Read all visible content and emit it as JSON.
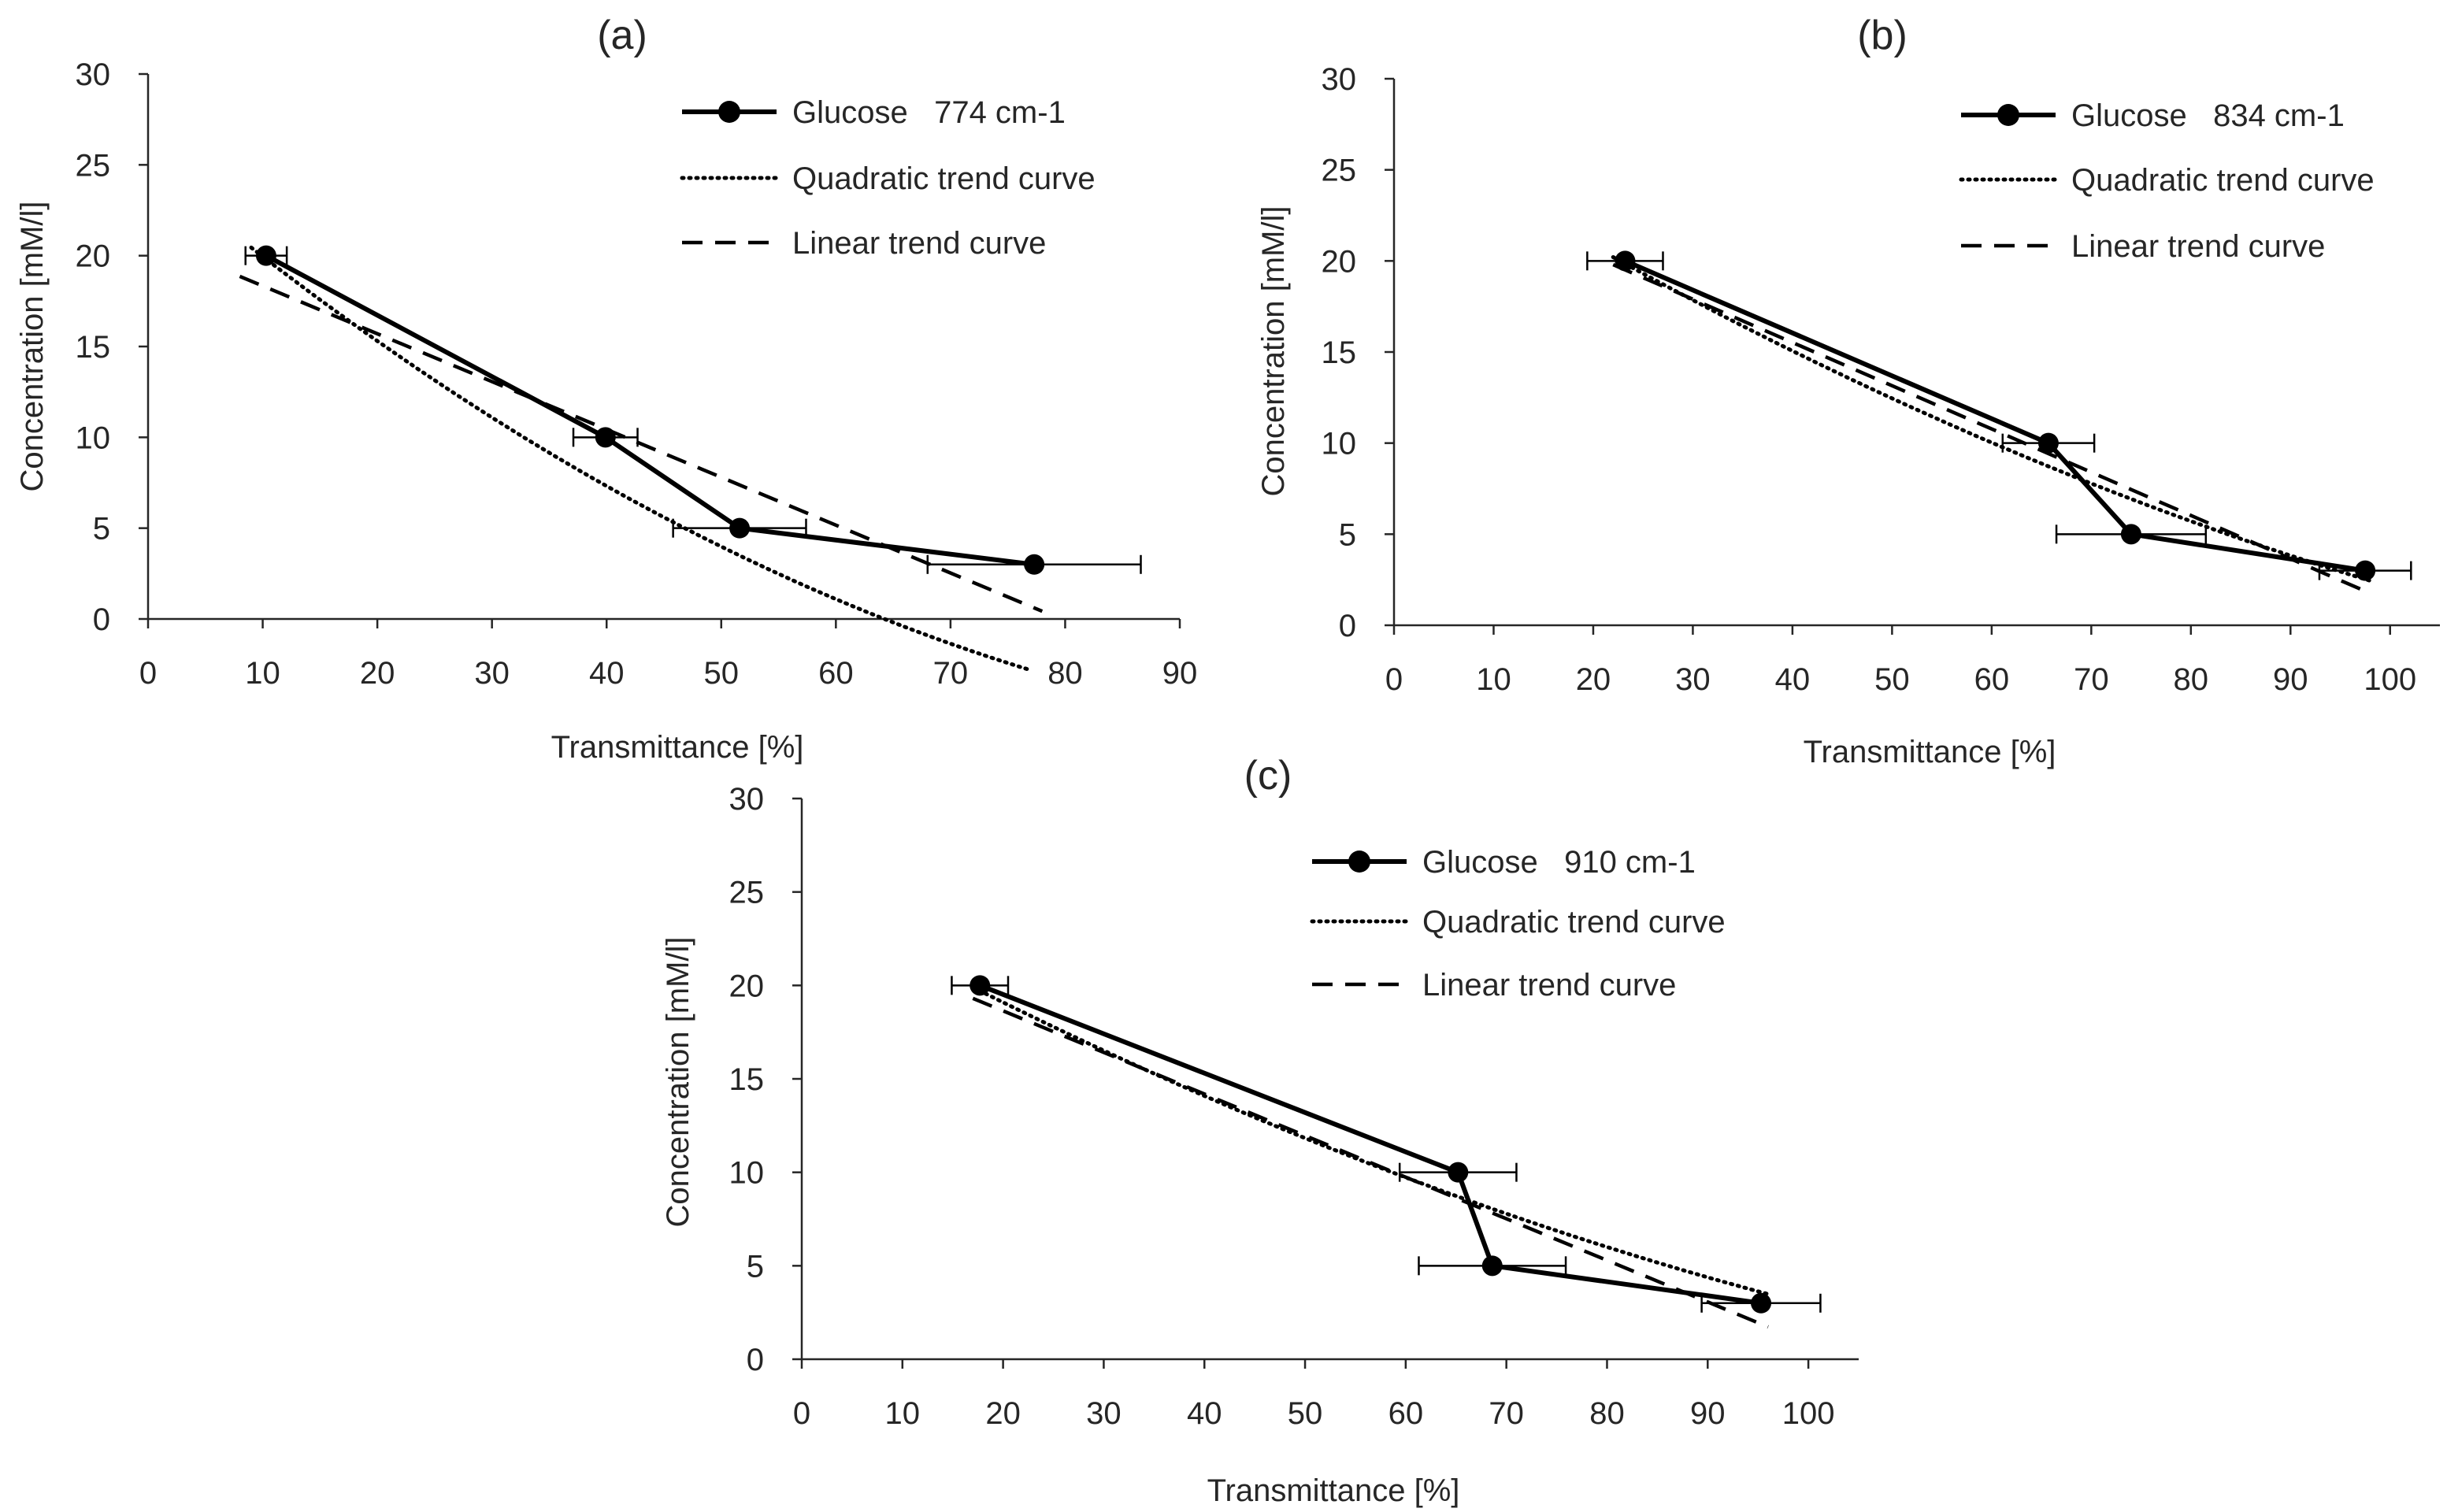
{
  "chart_data": [
    {
      "type": "line",
      "panel_label": "(a)",
      "xlabel": "Transmittance [%]",
      "ylabel": "Concentration [mM/l]",
      "xlim": [
        0,
        90
      ],
      "ylim": [
        0,
        30
      ],
      "xticks": [
        "0",
        "10",
        "20",
        "30",
        "40",
        "50",
        "60",
        "70",
        "80",
        "90"
      ],
      "yticks": [
        "0",
        "5",
        "10",
        "15",
        "20",
        "25",
        "30"
      ],
      "legend_position": "top-right",
      "series": [
        {
          "name": "Glucose   774 cm-1",
          "kind": "data",
          "x": [
            10.3,
            39.9,
            51.6,
            77.3
          ],
          "y": [
            20,
            10,
            5,
            3
          ],
          "x_error": [
            1.8,
            2.8,
            5.8,
            9.3
          ]
        },
        {
          "name": "Quadratic trend curve",
          "kind": "quadratic",
          "coefficients": [
            0.0022,
            -0.5313,
            25.05
          ],
          "x_range": [
            9,
            77
          ]
        },
        {
          "name": "Linear trend curve",
          "kind": "linear",
          "coefficients": [
            -0.2634,
            20.97
          ],
          "x_range": [
            8,
            78
          ]
        }
      ]
    },
    {
      "type": "line",
      "panel_label": "(b)",
      "xlabel": "Transmittance [%]",
      "ylabel": "Concentration [mM/l]",
      "xlim": [
        0,
        105
      ],
      "ylim": [
        0,
        30
      ],
      "xticks": [
        "0",
        "10",
        "20",
        "30",
        "40",
        "50",
        "60",
        "70",
        "80",
        "90",
        "100"
      ],
      "yticks": [
        "0",
        "5",
        "10",
        "15",
        "20",
        "25",
        "30"
      ],
      "legend_position": "top-right",
      "series": [
        {
          "name": "Glucose   834 cm-1",
          "kind": "data",
          "x": [
            23.2,
            65.7,
            74.0,
            97.5
          ],
          "y": [
            20,
            10,
            5,
            3
          ],
          "x_error": [
            3.8,
            4.6,
            7.5,
            4.6
          ]
        },
        {
          "name": "Quadratic trend curve",
          "kind": "quadratic",
          "coefficients": [
            0.0009,
            -0.3417,
            27.29
          ],
          "x_range": [
            22,
            98
          ]
        },
        {
          "name": "Linear trend curve",
          "kind": "linear",
          "coefficients": [
            -0.2374,
            25.02
          ],
          "x_range": [
            22,
            98
          ]
        }
      ]
    },
    {
      "type": "line",
      "panel_label": "(c)",
      "xlabel": "Transmittance [%]",
      "ylabel": "Concentration [mM/l]",
      "xlim": [
        0,
        105
      ],
      "ylim": [
        0,
        30
      ],
      "xticks": [
        "0",
        "10",
        "20",
        "30",
        "40",
        "50",
        "60",
        "70",
        "80",
        "90",
        "100"
      ],
      "yticks": [
        "0",
        "5",
        "10",
        "15",
        "20",
        "25",
        "30"
      ],
      "legend_position": "top-right",
      "series": [
        {
          "name": "Glucose   910 cm-1",
          "kind": "data",
          "x": [
            17.7,
            65.2,
            68.6,
            95.3
          ],
          "y": [
            20,
            10,
            5,
            3
          ],
          "x_error": [
            2.8,
            5.8,
            7.3,
            5.9
          ]
        },
        {
          "name": "Quadratic trend curve",
          "kind": "quadratic",
          "coefficients": [
            0.0008,
            -0.2982,
            24.74
          ],
          "x_range": [
            17,
            96
          ]
        },
        {
          "name": "Linear trend curve",
          "kind": "linear",
          "coefficients": [
            -0.2225,
            23.09
          ],
          "x_range": [
            17,
            96
          ]
        }
      ]
    }
  ]
}
